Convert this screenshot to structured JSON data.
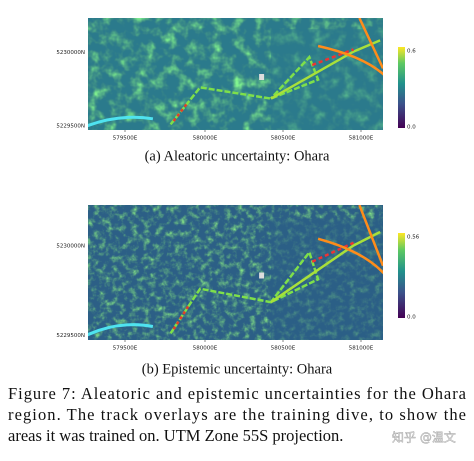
{
  "figure": {
    "panels": [
      {
        "y_tick_labels": [
          "5230000N",
          "5229500N"
        ],
        "x_tick_labels": [
          "579500E",
          "580000E",
          "580500E",
          "581000E"
        ],
        "colorbar_labels": [
          "0.6",
          "0.0"
        ],
        "caption": "(a) Aleatoric uncertainty: Ohara"
      },
      {
        "y_tick_labels": [
          "5230000N",
          "5229500N"
        ],
        "x_tick_labels": [
          "579500E",
          "580000E",
          "580500E",
          "581000E"
        ],
        "colorbar_labels": [
          "0.56",
          "0.0"
        ],
        "caption": "(b) Epistemic uncertainty: Ohara"
      }
    ],
    "caption_lines": [
      "Figure 7: Aleatoric and epistemic uncertainties for the Ohara",
      "region. The track overlays are the training dive, to show the",
      "areas it was trained on. UTM Zone 55S projection."
    ]
  },
  "watermark": "知乎 @温文"
}
